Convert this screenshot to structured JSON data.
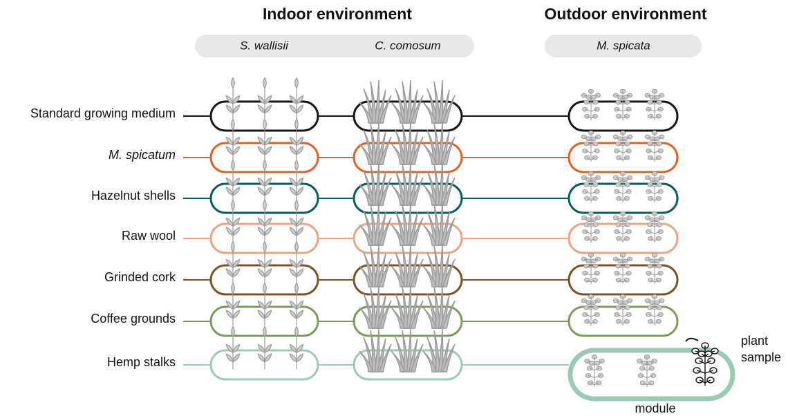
{
  "header": {
    "indoor_title": "Indoor environment",
    "outdoor_title": "Outdoor environment"
  },
  "species": [
    "S. wallisii",
    "C. comosum",
    "M. spicata"
  ],
  "rows": [
    {
      "label": "Standard growing medium",
      "color": "#151515",
      "italic": false
    },
    {
      "label": "M. spicatum",
      "color": "#d9622b",
      "italic": true
    },
    {
      "label": "Hazelnut shells",
      "color": "#0f5a5a",
      "italic": false
    },
    {
      "label": "Raw wool",
      "color": "#e9a487",
      "italic": false
    },
    {
      "label": "Grinded cork",
      "color": "#7a5328",
      "italic": false
    },
    {
      "label": "Coffee grounds",
      "color": "#7f9a5f",
      "italic": false
    },
    {
      "label": "Hemp stalks",
      "color": "#9ccab5",
      "italic": false
    }
  ],
  "annotations": {
    "plant_sample": [
      "plant",
      "sample"
    ],
    "module": "module"
  }
}
